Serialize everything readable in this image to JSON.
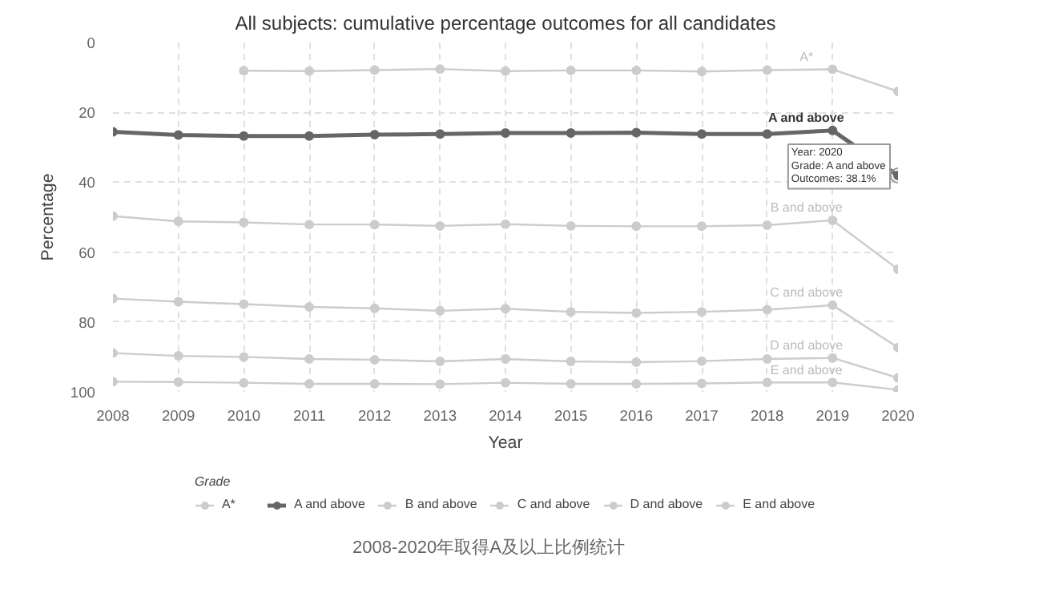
{
  "chart_data": {
    "type": "line",
    "title": "All subjects: cumulative percentage outcomes for all candidates",
    "xlabel": "Year",
    "ylabel": "Percentage",
    "legend_title": "Grade",
    "x": [
      2008,
      2009,
      2010,
      2011,
      2012,
      2013,
      2014,
      2015,
      2016,
      2017,
      2018,
      2019,
      2020
    ],
    "xlim": [
      2008,
      2020
    ],
    "xticks": [
      2008,
      2009,
      2010,
      2011,
      2012,
      2013,
      2014,
      2015,
      2016,
      2017,
      2018,
      2019,
      2020
    ],
    "ylim": [
      100,
      0
    ],
    "yticks": [
      0,
      20,
      40,
      60,
      80,
      100
    ],
    "grid": true,
    "legend": "bottom",
    "marker": "circle",
    "line_style": "solid",
    "series": [
      {
        "name": "A*",
        "color": "#cccccc",
        "values": [
          null,
          null,
          8.1,
          8.2,
          7.9,
          7.6,
          8.2,
          8.0,
          8.0,
          8.3,
          7.9,
          7.7,
          14.0
        ]
      },
      {
        "name": "A and above",
        "color": "#666666",
        "values": [
          25.6,
          26.5,
          26.8,
          26.8,
          26.4,
          26.2,
          25.9,
          25.9,
          25.8,
          26.2,
          26.2,
          25.2,
          38.1
        ]
      },
      {
        "name": "B and above",
        "color": "#cccccc",
        "values": [
          49.7,
          51.2,
          51.5,
          52.1,
          52.1,
          52.5,
          52.0,
          52.5,
          52.6,
          52.6,
          52.3,
          50.9,
          64.9
        ]
      },
      {
        "name": "C and above",
        "color": "#cccccc",
        "values": [
          73.3,
          74.2,
          74.9,
          75.7,
          76.1,
          76.8,
          76.2,
          77.1,
          77.4,
          77.1,
          76.5,
          75.2,
          87.3
        ]
      },
      {
        "name": "D and above",
        "color": "#cccccc",
        "values": [
          88.9,
          89.7,
          90.0,
          90.6,
          90.8,
          91.3,
          90.6,
          91.3,
          91.5,
          91.2,
          90.6,
          90.3,
          96.0
        ]
      },
      {
        "name": "E and above",
        "color": "#cccccc",
        "values": [
          97.1,
          97.2,
          97.4,
          97.7,
          97.7,
          97.8,
          97.4,
          97.7,
          97.7,
          97.6,
          97.3,
          97.3,
          99.4
        ]
      }
    ],
    "annotations": [
      {
        "text": "Year: 2020\nGrade: A and above\nOutcomes: 38.1%",
        "x": 2020,
        "y": 38.1
      },
      "2008-2020年取得A及以上比例统计"
    ]
  }
}
